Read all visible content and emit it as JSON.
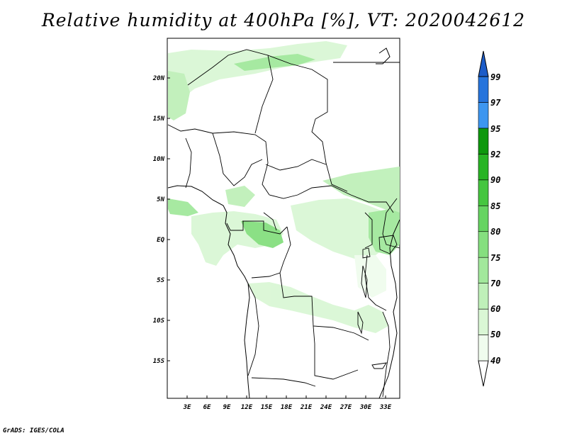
{
  "title": "Relative humidity at 400hPa [%], VT: 2020042612",
  "credit": "GrADS: IGES/COLA",
  "map": {
    "lat_labels": [
      "20N",
      "15N",
      "10N",
      "5N",
      "EQ",
      "5S",
      "10S",
      "15S"
    ],
    "lon_labels": [
      "3E",
      "6E",
      "9E",
      "12E",
      "15E",
      "18E",
      "21E",
      "24E",
      "27E",
      "30E",
      "33E"
    ]
  },
  "colorbar": {
    "levels": [
      "40",
      "50",
      "60",
      "70",
      "75",
      "80",
      "85",
      "90",
      "92",
      "95",
      "97",
      "99"
    ],
    "colors": [
      "#f0fcee",
      "#daf7d5",
      "#bff0b9",
      "#a2e89c",
      "#85df7f",
      "#66d461",
      "#45c63f",
      "#28b424",
      "#0e980d",
      "#3d96f0",
      "#2674dc",
      "#1c5cc8"
    ]
  }
}
